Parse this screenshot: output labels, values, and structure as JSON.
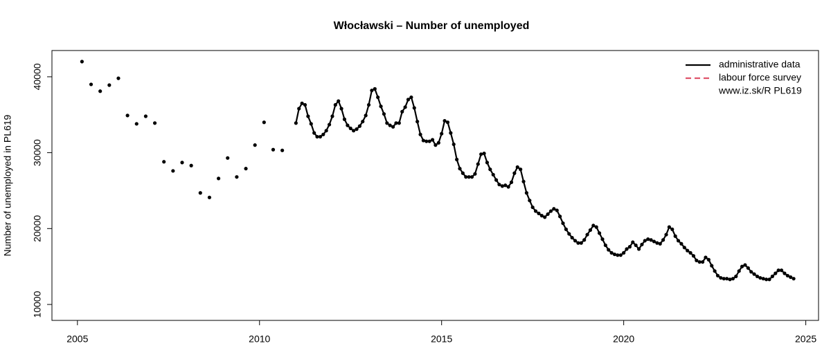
{
  "chart_data": {
    "type": "line",
    "title": "Włocławski – Number of unemployed",
    "y_label": "Number of unemployed in PL619",
    "source": "www.iz.sk/R PL619",
    "xlim": [
      2004.3,
      2025.35
    ],
    "ylim": [
      7900,
      43460
    ],
    "xticks": [
      2005,
      2010,
      2015,
      2020,
      2025
    ],
    "yticks": [
      10000,
      20000,
      30000,
      40000
    ],
    "series": [
      {
        "name": "administrative data",
        "color": "#000000",
        "dash": false,
        "x": [
          2005.125,
          null,
          2005.375,
          null,
          2005.625,
          null,
          2005.875,
          null,
          2006.125,
          null,
          2006.375,
          null,
          2006.625,
          null,
          2006.875,
          null,
          2007.125,
          null,
          2007.375,
          null,
          2007.625,
          null,
          2007.875,
          null,
          2008.125,
          null,
          2008.375,
          null,
          2008.625,
          null,
          2008.875,
          null,
          2009.125,
          null,
          2009.375,
          null,
          2009.625,
          null,
          2009.875,
          null,
          2010.125,
          null,
          2010.375,
          null,
          2010.625,
          null,
          2011,
          2011.083,
          2011.167,
          2011.25,
          2011.333,
          2011.417,
          2011.5,
          2011.583,
          2011.667,
          2011.75,
          2011.833,
          2011.917,
          2012,
          2012.083,
          2012.167,
          2012.25,
          2012.333,
          2012.417,
          2012.5,
          2012.583,
          2012.667,
          2012.75,
          2012.833,
          2012.917,
          2013,
          2013.083,
          2013.167,
          2013.25,
          2013.333,
          2013.417,
          2013.5,
          2013.583,
          2013.667,
          2013.75,
          2013.833,
          2013.917,
          2014,
          2014.083,
          2014.167,
          2014.25,
          2014.333,
          2014.417,
          2014.5,
          2014.583,
          2014.667,
          2014.75,
          2014.833,
          2014.917,
          2015,
          2015.083,
          2015.167,
          2015.25,
          2015.333,
          2015.417,
          2015.5,
          2015.583,
          2015.667,
          2015.75,
          2015.833,
          2015.917,
          2016,
          2016.083,
          2016.167,
          2016.25,
          2016.333,
          2016.417,
          2016.5,
          2016.583,
          2016.667,
          2016.75,
          2016.833,
          2016.917,
          2017,
          2017.083,
          2017.167,
          2017.25,
          2017.333,
          2017.417,
          2017.5,
          2017.583,
          2017.667,
          2017.75,
          2017.833,
          2017.917,
          2018,
          2018.083,
          2018.167,
          2018.25,
          2018.333,
          2018.417,
          2018.5,
          2018.583,
          2018.667,
          2018.75,
          2018.833,
          2018.917,
          2019,
          2019.083,
          2019.167,
          2019.25,
          2019.333,
          2019.417,
          2019.5,
          2019.583,
          2019.667,
          2019.75,
          2019.833,
          2019.917,
          2020,
          2020.083,
          2020.167,
          2020.25,
          2020.333,
          2020.417,
          2020.5,
          2020.583,
          2020.667,
          2020.75,
          2020.833,
          2020.917,
          2021,
          2021.083,
          2021.167,
          2021.25,
          2021.333,
          2021.417,
          2021.5,
          2021.583,
          2021.667,
          2021.75,
          2021.833,
          2021.917,
          2022,
          2022.083,
          2022.167,
          2022.25,
          2022.333,
          2022.417,
          2022.5,
          2022.583,
          2022.667,
          2022.75,
          2022.833,
          2022.917,
          2023,
          2023.083,
          2023.167,
          2023.25,
          2023.333,
          2023.417,
          2023.5,
          2023.583,
          2023.667,
          2023.75,
          2023.833,
          2023.917,
          2024,
          2024.083,
          2024.167,
          2024.25,
          2024.333,
          2024.417,
          2024.5,
          2024.583,
          2024.667
        ],
        "values": [
          42000,
          null,
          39000,
          null,
          38100,
          null,
          38900,
          null,
          39800,
          null,
          34900,
          null,
          33800,
          null,
          34800,
          null,
          33900,
          null,
          28800,
          null,
          27600,
          null,
          28700,
          null,
          28300,
          null,
          24700,
          null,
          24100,
          null,
          26600,
          null,
          29300,
          null,
          26800,
          null,
          27900,
          null,
          31000,
          null,
          34000,
          null,
          30400,
          null,
          30300,
          null,
          33900,
          35800,
          36500,
          36300,
          34800,
          33800,
          32600,
          32100,
          32100,
          32400,
          32900,
          33700,
          34800,
          36300,
          36800,
          35800,
          34400,
          33600,
          33200,
          32900,
          33100,
          33500,
          34100,
          34900,
          36300,
          38200,
          38400,
          37300,
          36100,
          35100,
          33900,
          33600,
          33400,
          33900,
          33900,
          35400,
          36000,
          37000,
          37300,
          35900,
          34100,
          32400,
          31600,
          31500,
          31500,
          31700,
          31000,
          31300,
          32500,
          34200,
          34000,
          32600,
          31100,
          29100,
          27900,
          27300,
          26800,
          26800,
          26800,
          27200,
          28500,
          29800,
          29900,
          28700,
          27800,
          27100,
          26400,
          25800,
          25600,
          25700,
          25500,
          26100,
          27300,
          28100,
          27800,
          26200,
          24700,
          23700,
          22800,
          22300,
          22000,
          21700,
          21500,
          21900,
          22300,
          22600,
          22400,
          21600,
          20700,
          19900,
          19300,
          18800,
          18400,
          18100,
          18100,
          18500,
          19200,
          19800,
          20400,
          20200,
          19400,
          18600,
          17800,
          17200,
          16800,
          16600,
          16500,
          16500,
          16800,
          17300,
          17600,
          18200,
          17800,
          17300,
          17900,
          18400,
          18600,
          18500,
          18300,
          18100,
          18000,
          18500,
          19200,
          20200,
          19900,
          19000,
          18400,
          18000,
          17500,
          17100,
          16800,
          16400,
          15800,
          15600,
          15600,
          16200,
          15900,
          15100,
          14400,
          13800,
          13500,
          13400,
          13400,
          13300,
          13400,
          13700,
          14400,
          15000,
          15200,
          14800,
          14300,
          14000,
          13700,
          13500,
          13400,
          13300,
          13300,
          13700,
          14100,
          14500,
          14500,
          14100,
          13800,
          13600,
          13400
        ]
      },
      {
        "name": "labour force survey",
        "color": "#df536b",
        "dash": true,
        "x": [],
        "values": []
      }
    ],
    "legend": "topright"
  }
}
